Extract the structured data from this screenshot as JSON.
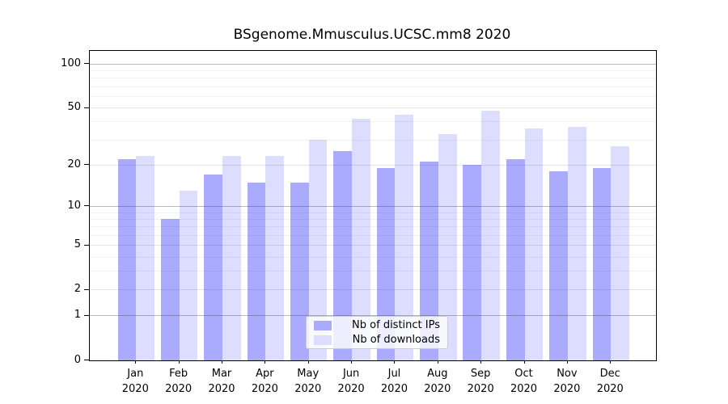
{
  "chart_data": {
    "type": "bar",
    "title": "BSgenome.Mmusculus.UCSC.mm8 2020",
    "categories": [
      "Jan",
      "Feb",
      "Mar",
      "Apr",
      "May",
      "Jun",
      "Jul",
      "Aug",
      "Sep",
      "Oct",
      "Nov",
      "Dec"
    ],
    "category_year": "2020",
    "series": [
      {
        "name": "Nb of distinct IPs",
        "color": "#aaaaff",
        "values": [
          22,
          8,
          17,
          15,
          15,
          25,
          19,
          21,
          20,
          22,
          18,
          19
        ]
      },
      {
        "name": "Nb of downloads",
        "color": "#ddddff",
        "values": [
          23,
          13,
          23,
          23,
          30,
          42,
          45,
          33,
          48,
          36,
          37,
          27
        ]
      }
    ],
    "xlabel": "",
    "ylabel": "",
    "yscale": "log10(1+v)",
    "yticks": [
      0,
      1,
      2,
      5,
      10,
      20,
      50,
      100
    ],
    "major_gridlines": [
      1,
      10,
      100
    ],
    "mid_gridlines": [
      2,
      5,
      20,
      50
    ],
    "minor_gridlines": [
      3,
      4,
      6,
      7,
      8,
      9,
      30,
      40,
      60,
      70,
      80,
      90
    ],
    "ylim": [
      0,
      123
    ],
    "grid": true,
    "legend_position": "inside-bottom-center"
  }
}
